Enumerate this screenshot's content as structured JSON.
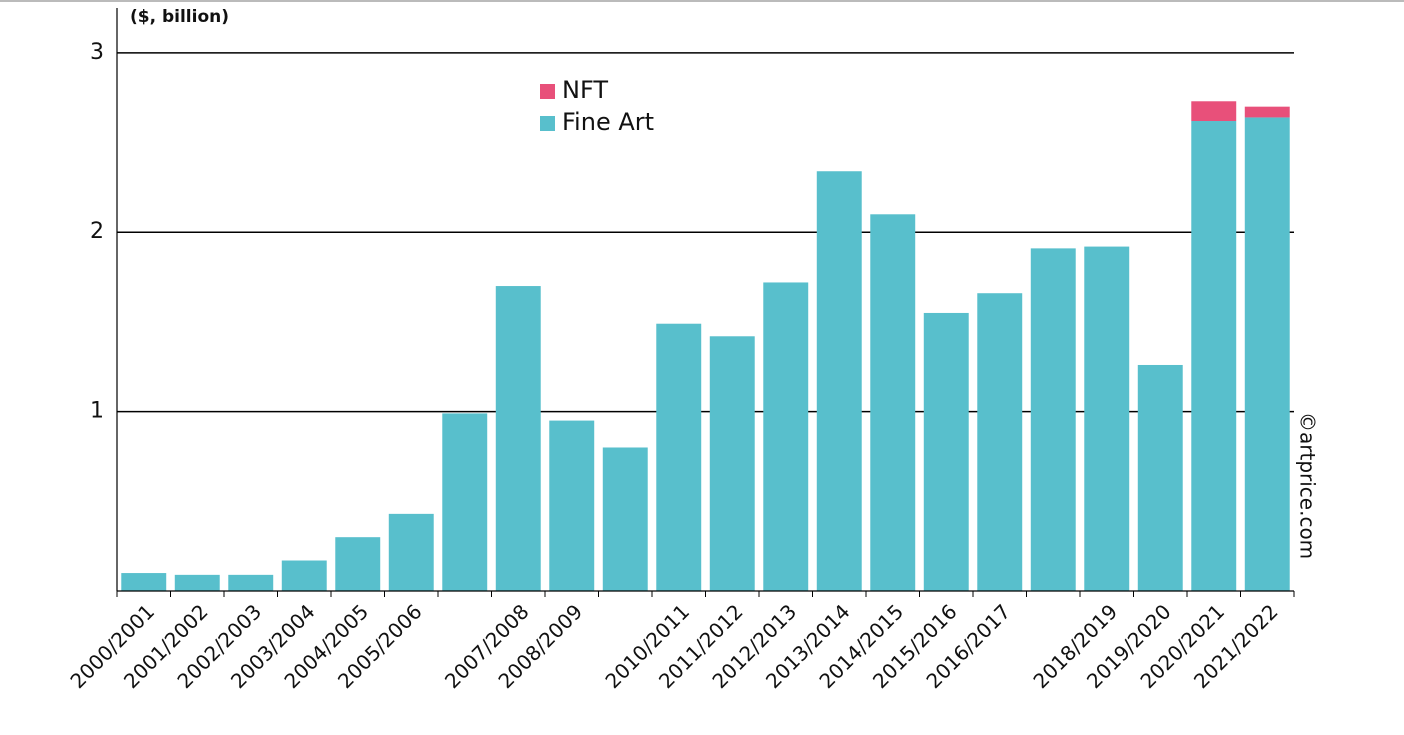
{
  "chart_data": {
    "type": "bar",
    "stacked": true,
    "y_axis_label": "($, billion)",
    "annotation": "©artprice.com",
    "categories": [
      "2000/2001",
      "2001/2002",
      "2002/2003",
      "2003/2004",
      "2004/2005",
      "2005/2006",
      null,
      "2007/2008",
      "2008/2009",
      null,
      "2010/2011",
      "2011/2012",
      "2012/2013",
      "2013/2014",
      "2014/2015",
      "2015/2016",
      "2016/2017",
      null,
      "2018/2019",
      "2019/2020",
      "2020/2021",
      "2021/2022"
    ],
    "series": [
      {
        "name": "Fine Art",
        "color": "#58bfcc",
        "values": [
          0.1,
          0.09,
          0.09,
          0.17,
          0.3,
          0.43,
          0.99,
          1.7,
          0.95,
          0.8,
          1.49,
          1.42,
          1.72,
          2.34,
          2.1,
          1.55,
          1.66,
          1.91,
          1.92,
          1.26,
          2.62,
          2.64
        ]
      },
      {
        "name": "NFT",
        "color": "#e8507a",
        "values": [
          null,
          null,
          null,
          null,
          null,
          null,
          null,
          null,
          null,
          null,
          null,
          null,
          null,
          null,
          null,
          null,
          null,
          null,
          null,
          null,
          0.11,
          0.06
        ]
      }
    ],
    "ylim": [
      0,
      3.25
    ],
    "yticks": [
      1,
      2,
      3
    ],
    "grid": true
  }
}
